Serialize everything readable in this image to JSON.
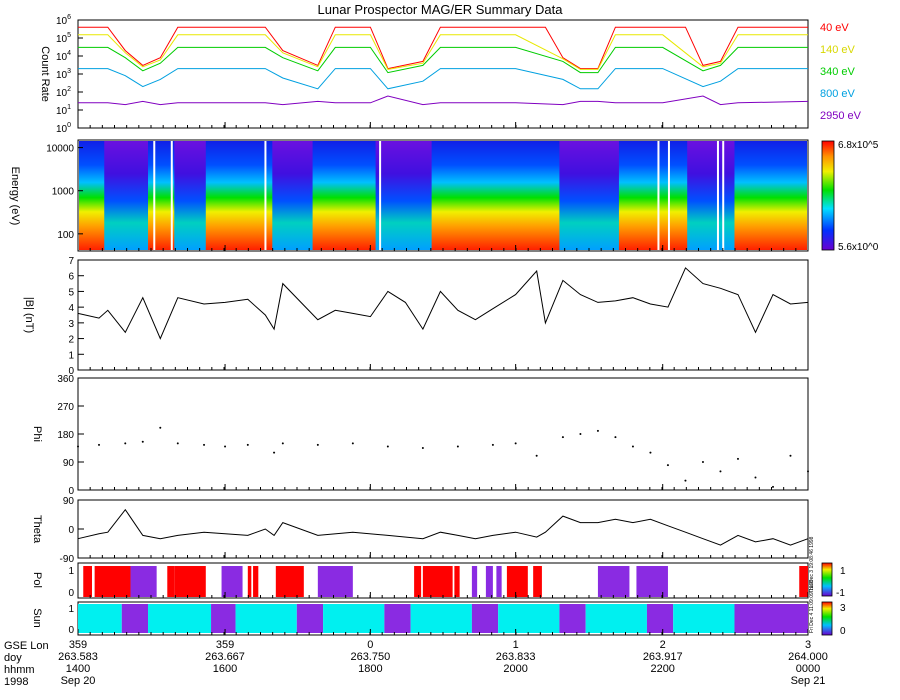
{
  "title": "Lunar Prospector MAG/ER Summary Data",
  "chart_data": [
    {
      "type": "line",
      "id": "count-rate",
      "ylabel": "Count Rate",
      "yscale": "log",
      "ylim": [
        1,
        1000000
      ],
      "ytick_labels": [
        "10^0",
        "10^1",
        "10^2",
        "10^3",
        "10^4",
        "10^5",
        "10^6"
      ],
      "series": [
        {
          "name": "40 eV",
          "color": "#ff0000",
          "x": [
            263.583,
            263.59,
            263.6,
            263.61,
            263.62,
            263.63,
            263.64,
            263.65,
            263.66,
            263.667,
            263.68,
            263.69,
            263.7,
            263.72,
            263.73,
            263.74,
            263.75,
            263.76,
            263.78,
            263.79,
            263.8,
            263.81,
            263.82,
            263.833,
            263.85,
            263.86,
            263.87,
            263.88,
            263.89,
            263.9,
            263.917,
            263.93,
            263.94,
            263.95,
            263.96,
            263.97,
            263.98,
            264.0
          ],
          "values": [
            400000,
            400000,
            400000,
            20000,
            3000,
            8000,
            400000,
            400000,
            400000,
            400000,
            400000,
            400000,
            20000,
            3000,
            400000,
            400000,
            400000,
            2000,
            5000,
            400000,
            400000,
            400000,
            400000,
            400000,
            400000,
            8000,
            2000,
            2000,
            400000,
            400000,
            400000,
            400000,
            3000,
            5000,
            400000,
            400000,
            400000,
            400000
          ]
        },
        {
          "name": "140 eV",
          "color": "#e8e800",
          "x": [
            263.583,
            263.6,
            263.61,
            263.62,
            263.63,
            263.64,
            263.667,
            263.69,
            263.7,
            263.72,
            263.73,
            263.75,
            263.76,
            263.78,
            263.79,
            263.833,
            263.86,
            263.87,
            263.88,
            263.89,
            263.917,
            263.94,
            263.95,
            263.96,
            264.0
          ],
          "values": [
            150000,
            150000,
            15000,
            2500,
            6000,
            150000,
            150000,
            150000,
            15000,
            2500,
            150000,
            150000,
            1800,
            4000,
            150000,
            150000,
            7000,
            1800,
            1800,
            150000,
            150000,
            2500,
            4000,
            150000,
            150000
          ]
        },
        {
          "name": "340 eV",
          "color": "#00cc00",
          "x": [
            263.583,
            263.6,
            263.61,
            263.62,
            263.63,
            263.64,
            263.667,
            263.69,
            263.7,
            263.72,
            263.73,
            263.75,
            263.76,
            263.78,
            263.79,
            263.833,
            263.86,
            263.87,
            263.88,
            263.89,
            263.917,
            263.94,
            263.95,
            263.96,
            264.0
          ],
          "values": [
            30000,
            30000,
            8000,
            1500,
            4000,
            30000,
            30000,
            30000,
            8000,
            1500,
            30000,
            30000,
            1200,
            3000,
            30000,
            30000,
            5000,
            1200,
            1200,
            30000,
            30000,
            1500,
            3000,
            30000,
            30000
          ]
        },
        {
          "name": "800 eV",
          "color": "#00a0e0",
          "x": [
            263.583,
            263.6,
            263.61,
            263.62,
            263.63,
            263.64,
            263.667,
            263.69,
            263.7,
            263.72,
            263.73,
            263.75,
            263.76,
            263.78,
            263.79,
            263.833,
            263.86,
            263.87,
            263.88,
            263.89,
            263.917,
            263.94,
            263.95,
            263.96,
            264.0
          ],
          "values": [
            2000,
            2000,
            800,
            200,
            500,
            2000,
            2000,
            2000,
            600,
            150,
            2000,
            2000,
            150,
            400,
            2000,
            2000,
            500,
            150,
            150,
            2000,
            2000,
            200,
            400,
            2000,
            2000
          ]
        },
        {
          "name": "2950 eV",
          "color": "#8000c0",
          "x": [
            263.583,
            263.6,
            263.61,
            263.62,
            263.63,
            263.64,
            263.667,
            263.69,
            263.7,
            263.72,
            263.73,
            263.75,
            263.76,
            263.78,
            263.79,
            263.833,
            263.86,
            263.87,
            263.88,
            263.89,
            263.917,
            263.94,
            263.95,
            263.96,
            264.0
          ],
          "values": [
            25,
            25,
            20,
            30,
            20,
            25,
            25,
            25,
            20,
            30,
            25,
            25,
            60,
            20,
            25,
            25,
            20,
            30,
            30,
            25,
            25,
            60,
            20,
            25,
            30
          ]
        }
      ]
    },
    {
      "type": "heatmap",
      "id": "energy-spectrogram",
      "ylabel": "Energy (eV)",
      "yscale": "log",
      "ylim": [
        40,
        15000
      ],
      "ytick_labels": [
        "100",
        "1000",
        "10000"
      ],
      "colorbar": {
        "max_label": "6.8x10^5",
        "min_label": "5.6x10^0"
      },
      "wake_intervals": [
        [
          263.598,
          263.623
        ],
        [
          263.638,
          263.656
        ],
        [
          263.694,
          263.717
        ],
        [
          263.753,
          263.785
        ],
        [
          263.858,
          263.892
        ],
        [
          263.931,
          263.958
        ]
      ],
      "data_gaps": [
        263.626,
        263.636,
        263.6895,
        263.755,
        263.914,
        263.92,
        263.948,
        263.951
      ]
    },
    {
      "type": "line",
      "id": "field-magnitude",
      "ylabel": "|B| (nT)",
      "ylim": [
        0,
        7
      ],
      "yticks": [
        0,
        1,
        2,
        3,
        4,
        5,
        6,
        7
      ],
      "series": [
        {
          "name": "|B|",
          "color": "#000000",
          "x": [
            263.583,
            263.595,
            263.6,
            263.61,
            263.62,
            263.63,
            263.64,
            263.655,
            263.667,
            263.68,
            263.69,
            263.695,
            263.7,
            263.72,
            263.73,
            263.74,
            263.75,
            263.76,
            263.77,
            263.78,
            263.79,
            263.8,
            263.81,
            263.82,
            263.833,
            263.845,
            263.85,
            263.86,
            263.87,
            263.88,
            263.89,
            263.9,
            263.91,
            263.92,
            263.93,
            263.94,
            263.95,
            263.96,
            263.97,
            263.98,
            263.99,
            264.0
          ],
          "values": [
            3.6,
            3.3,
            3.8,
            2.4,
            4.6,
            2.0,
            4.6,
            4.2,
            4.3,
            4.5,
            3.5,
            2.6,
            5.5,
            3.2,
            3.8,
            3.6,
            3.4,
            5.0,
            4.3,
            2.6,
            5.0,
            3.8,
            3.2,
            3.9,
            4.8,
            6.3,
            3.0,
            5.7,
            4.8,
            4.3,
            4.4,
            4.6,
            4.2,
            4.0,
            6.5,
            5.5,
            5.2,
            4.8,
            2.4,
            4.8,
            4.2,
            4.3
          ]
        }
      ]
    },
    {
      "type": "scatter",
      "id": "phi",
      "ylabel": "Phi",
      "ylim": [
        0,
        360
      ],
      "yticks": [
        0,
        90,
        180,
        270,
        360
      ],
      "series": [
        {
          "name": "Phi",
          "color": "#000000",
          "x": [
            263.583,
            263.595,
            263.61,
            263.62,
            263.63,
            263.64,
            263.655,
            263.667,
            263.68,
            263.695,
            263.7,
            263.72,
            263.74,
            263.76,
            263.78,
            263.8,
            263.82,
            263.833,
            263.845,
            263.86,
            263.87,
            263.88,
            263.89,
            263.9,
            263.91,
            263.92,
            263.93,
            263.94,
            263.95,
            263.96,
            263.97,
            263.98,
            263.99,
            264.0
          ],
          "values": [
            140,
            145,
            150,
            155,
            200,
            150,
            145,
            140,
            145,
            120,
            150,
            145,
            150,
            140,
            135,
            140,
            145,
            150,
            110,
            170,
            180,
            190,
            170,
            140,
            120,
            80,
            30,
            90,
            60,
            100,
            40,
            10,
            110,
            60
          ]
        }
      ]
    },
    {
      "type": "line",
      "id": "theta",
      "ylabel": "Theta",
      "ylim": [
        -90,
        90
      ],
      "yticks": [
        -90,
        0,
        90
      ],
      "series": [
        {
          "name": "Theta",
          "color": "#000000",
          "x": [
            263.583,
            263.595,
            263.6,
            263.61,
            263.62,
            263.63,
            263.64,
            263.655,
            263.667,
            263.68,
            263.69,
            263.695,
            263.7,
            263.72,
            263.74,
            263.76,
            263.78,
            263.79,
            263.8,
            263.81,
            263.82,
            263.833,
            263.845,
            263.85,
            263.86,
            263.87,
            263.88,
            263.89,
            263.9,
            263.91,
            263.92,
            263.93,
            263.94,
            263.95,
            263.96,
            263.97,
            263.98,
            263.99,
            264.0
          ],
          "values": [
            -30,
            -15,
            -10,
            60,
            -20,
            -30,
            -20,
            -10,
            -15,
            -20,
            0,
            -20,
            20,
            -20,
            -10,
            -20,
            -30,
            -10,
            -20,
            -30,
            -20,
            -10,
            -25,
            -10,
            40,
            20,
            20,
            30,
            20,
            30,
            10,
            -10,
            -30,
            -50,
            -20,
            -40,
            -30,
            -50,
            -30
          ]
        }
      ]
    },
    {
      "type": "heatmap",
      "id": "pol",
      "ylabel": "Pol",
      "yticks": [
        0,
        1
      ],
      "colorbar": {
        "top_label": "1",
        "bottom_label": "-1"
      },
      "segments": [
        [
          263.586,
          263.591,
          "red"
        ],
        [
          263.591,
          263.5925,
          "white"
        ],
        [
          263.5925,
          263.613,
          "red"
        ],
        [
          263.613,
          263.628,
          "purple"
        ],
        [
          263.628,
          263.633,
          "white"
        ],
        [
          263.634,
          263.638,
          "red"
        ],
        [
          263.638,
          263.656,
          "red"
        ],
        [
          263.665,
          263.677,
          "purple"
        ],
        [
          263.68,
          263.682,
          "red"
        ],
        [
          263.683,
          263.686,
          "red"
        ],
        [
          263.696,
          263.712,
          "red"
        ],
        [
          263.72,
          263.74,
          "purple"
        ],
        [
          263.775,
          263.779,
          "red"
        ],
        [
          263.78,
          263.797,
          "red"
        ],
        [
          263.798,
          263.801,
          "red"
        ],
        [
          263.808,
          263.811,
          "purple"
        ],
        [
          263.816,
          263.82,
          "purple"
        ],
        [
          263.822,
          263.825,
          "purple"
        ],
        [
          263.828,
          263.84,
          "red"
        ],
        [
          263.84,
          263.842,
          "white"
        ],
        [
          263.843,
          263.848,
          "red"
        ],
        [
          263.88,
          263.898,
          "purple"
        ],
        [
          263.902,
          263.92,
          "purple"
        ],
        [
          263.995,
          264.0,
          "red"
        ]
      ]
    },
    {
      "type": "heatmap",
      "id": "sun",
      "ylabel": "Sun",
      "yticks": [
        0,
        1
      ],
      "colorbar": {
        "top_label": "3",
        "bottom_label": "0"
      },
      "segments": [
        [
          263.583,
          263.608,
          "cyan"
        ],
        [
          263.608,
          263.623,
          "purple"
        ],
        [
          263.623,
          263.659,
          "cyan"
        ],
        [
          263.659,
          263.673,
          "purple"
        ],
        [
          263.673,
          263.708,
          "cyan"
        ],
        [
          263.708,
          263.723,
          "purple"
        ],
        [
          263.723,
          263.758,
          "cyan"
        ],
        [
          263.758,
          263.773,
          "purple"
        ],
        [
          263.773,
          263.808,
          "cyan"
        ],
        [
          263.808,
          263.823,
          "purple"
        ],
        [
          263.823,
          263.858,
          "cyan"
        ],
        [
          263.858,
          263.873,
          "purple"
        ],
        [
          263.873,
          263.908,
          "cyan"
        ],
        [
          263.908,
          263.923,
          "purple"
        ],
        [
          263.923,
          263.958,
          "cyan"
        ],
        [
          263.958,
          264.0,
          "purple"
        ]
      ]
    }
  ],
  "x_axis": {
    "xlim": [
      263.583,
      264.0
    ],
    "row_labels": [
      "GSE Lon",
      "doy",
      "hhmm",
      "1998"
    ],
    "ticks": [
      {
        "doy": 263.583,
        "lon": "359",
        "doy_label": "263.583",
        "hhmm": "1400",
        "date": "Sep 20"
      },
      {
        "doy": 263.667,
        "lon": "359",
        "doy_label": "263.667",
        "hhmm": "1600",
        "date": ""
      },
      {
        "doy": 263.75,
        "lon": "0",
        "doy_label": "263.750",
        "hhmm": "1800",
        "date": ""
      },
      {
        "doy": 263.833,
        "lon": "1",
        "doy_label": "263.833",
        "hhmm": "2000",
        "date": ""
      },
      {
        "doy": 263.917,
        "lon": "2",
        "doy_label": "263.917",
        "hhmm": "2200",
        "date": ""
      },
      {
        "doy": 264.0,
        "lon": "3",
        "doy_label": "264.000",
        "hhmm": "0000",
        "date": "Sep 21"
      }
    ]
  },
  "side_notes": {
    "pol_note": "Thu Dec 3 19:08:46 1998",
    "sun_note": "Fri Dec 4 11:09:09 1998"
  },
  "colors": {
    "red": "#ff0000",
    "purple": "#8a2be2",
    "cyan": "#00f0f0",
    "white": "#ffffff"
  }
}
